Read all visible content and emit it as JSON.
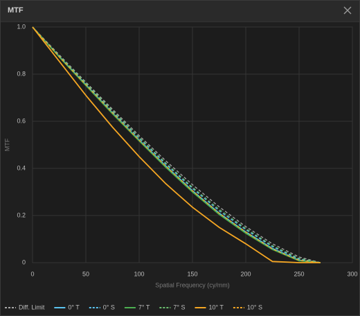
{
  "window": {
    "title": "MTF"
  },
  "chart_data": {
    "type": "line",
    "xlabel": "Spatial Frequency (cy/mm)",
    "ylabel": "MTF",
    "x": [
      0,
      25,
      50,
      75,
      100,
      125,
      150,
      175,
      200,
      225,
      250,
      270
    ],
    "xlim": [
      0,
      300
    ],
    "xticks": [
      0,
      50,
      100,
      150,
      200,
      250,
      300
    ],
    "ylim": [
      0,
      1
    ],
    "yticks": [
      0,
      0.2,
      0.4,
      0.6,
      {
        "value": 0.8,
        "label": "0.8"
      },
      {
        "value": 1,
        "label": "1.0"
      }
    ],
    "grid": true,
    "series": [
      {
        "name": "Diff. Limit",
        "color": "#a8a8a8",
        "dash": "dashed",
        "values": [
          1,
          0.882,
          0.766,
          0.651,
          0.539,
          0.432,
          0.331,
          0.237,
          0.153,
          0.08,
          0.024,
          0
        ]
      },
      {
        "name": "0° T",
        "color": "#5bc4f0",
        "dash": "solid",
        "values": [
          1,
          0.875,
          0.755,
          0.635,
          0.52,
          0.41,
          0.305,
          0.21,
          0.13,
          0.06,
          0.01,
          0
        ]
      },
      {
        "name": "0° S",
        "color": "#5bc4f0",
        "dash": "dashed",
        "values": [
          1,
          0.877,
          0.76,
          0.642,
          0.528,
          0.418,
          0.315,
          0.22,
          0.14,
          0.068,
          0.015,
          0
        ]
      },
      {
        "name": "7° T",
        "color": "#4caf50",
        "dash": "solid",
        "values": [
          1,
          0.873,
          0.752,
          0.632,
          0.517,
          0.405,
          0.3,
          0.205,
          0.125,
          0.056,
          0.008,
          0
        ]
      },
      {
        "name": "7° S",
        "color": "#6cc070",
        "dash": "dashed",
        "values": [
          1,
          0.878,
          0.762,
          0.645,
          0.532,
          0.423,
          0.32,
          0.226,
          0.145,
          0.072,
          0.018,
          0
        ]
      },
      {
        "name": "10° T",
        "color": "#f5a623",
        "dash": "solid",
        "values": [
          1,
          0.855,
          0.71,
          0.575,
          0.45,
          0.335,
          0.235,
          0.15,
          0.08,
          0.005,
          0,
          0
        ]
      },
      {
        "name": "10° S",
        "color": "#f5a623",
        "dash": "dashed",
        "values": [
          1,
          0.874,
          0.755,
          0.636,
          0.52,
          0.41,
          0.305,
          0.21,
          0.13,
          0.058,
          0.01,
          0
        ]
      }
    ]
  }
}
